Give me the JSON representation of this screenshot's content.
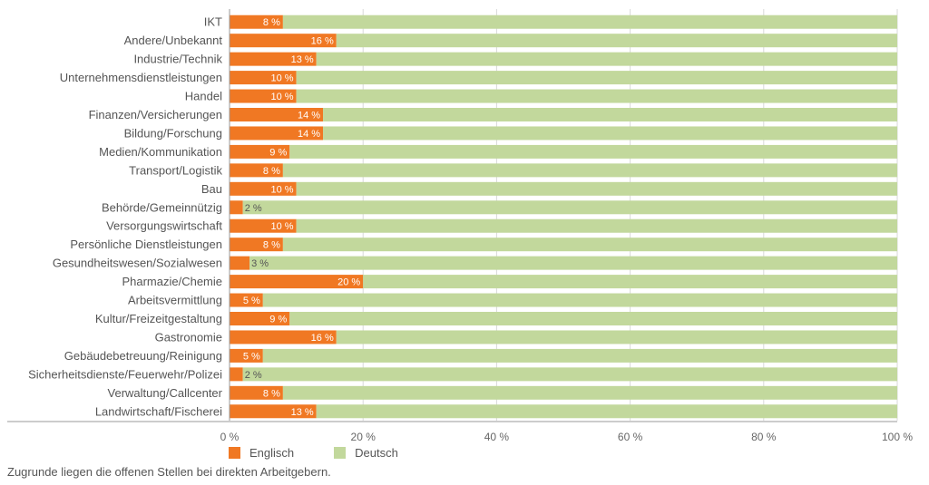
{
  "chart_data": {
    "type": "bar",
    "orientation": "horizontal",
    "stacked": true,
    "categories": [
      "IKT",
      "Andere/Unbekannt",
      "Industrie/Technik",
      "Unternehmensdienstleistungen",
      "Handel",
      "Finanzen/Versicherungen",
      "Bildung/Forschung",
      "Medien/Kommunikation",
      "Transport/Logistik",
      "Bau",
      "Behörde/Gemeinnützig",
      "Versorgungswirtschaft",
      "Persönliche Dienstleistungen",
      "Gesundheitswesen/Sozialwesen",
      "Pharmazie/Chemie",
      "Arbeitsvermittlung",
      "Kultur/Freizeitgestaltung",
      "Gastronomie",
      "Gebäudebetreuung/Reinigung",
      "Sicherheitsdienste/Feuerwehr/Polizei",
      "Verwaltung/Callcenter",
      "Landwirtschaft/Fischerei"
    ],
    "series": [
      {
        "name": "Englisch",
        "color": "#f07823",
        "values": [
          8,
          16,
          13,
          10,
          10,
          14,
          14,
          9,
          8,
          10,
          2,
          10,
          8,
          3,
          20,
          5,
          9,
          16,
          5,
          2,
          8,
          13
        ]
      },
      {
        "name": "Deutsch",
        "color": "#c2d89c",
        "values": [
          92,
          84,
          87,
          90,
          90,
          86,
          86,
          91,
          92,
          90,
          98,
          90,
          92,
          97,
          80,
          95,
          91,
          84,
          95,
          98,
          92,
          87
        ]
      }
    ],
    "data_labels": [
      "8 %",
      "16 %",
      "13 %",
      "10 %",
      "10 %",
      "14 %",
      "14 %",
      "9 %",
      "8 %",
      "10 %",
      "2 %",
      "10 %",
      "8 %",
      "3 %",
      "20 %",
      "5 %",
      "9 %",
      "16 %",
      "5 %",
      "2 %",
      "8 %",
      "13 %"
    ],
    "xlim": [
      0,
      100
    ],
    "xticks": [
      0,
      20,
      40,
      60,
      80,
      100
    ],
    "xtick_labels": [
      "0 %",
      "20 %",
      "40 %",
      "60 %",
      "80 %",
      "100 %"
    ],
    "grid": "vertical",
    "legend_position": "bottom-left"
  },
  "legend": {
    "english": "Englisch",
    "german": "Deutsch"
  },
  "footnote": "Zugrunde liegen die offenen Stellen bei direkten Arbeitgebern."
}
